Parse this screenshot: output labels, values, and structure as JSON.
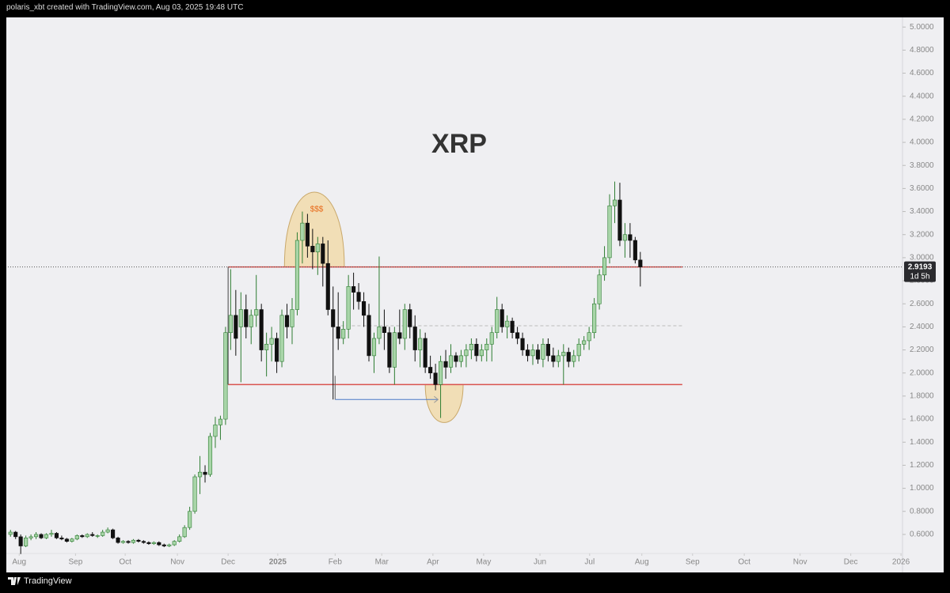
{
  "header": "polaris_xbt created with TradingView.com, Aug 03, 2025 19:48 UTC",
  "brand": "TradingView",
  "chart_data": {
    "type": "candlestick",
    "title": "XRP",
    "xlim": [
      -0.5,
      174.2
    ],
    "ylim": [
      0.435,
      5.07
    ],
    "xticks": [
      {
        "value": 1.7,
        "label": "Aug"
      },
      {
        "value": 12.7,
        "label": "Sep"
      },
      {
        "value": 22.4,
        "label": "Oct"
      },
      {
        "value": 32.6,
        "label": "Nov"
      },
      {
        "value": 42.5,
        "label": "Dec"
      },
      {
        "value": 52.2,
        "label": "2025"
      },
      {
        "value": 63.4,
        "label": "Feb"
      },
      {
        "value": 72.5,
        "label": "Mar"
      },
      {
        "value": 82.5,
        "label": "Apr"
      },
      {
        "value": 92.4,
        "label": "May"
      },
      {
        "value": 103.4,
        "label": "Jun"
      },
      {
        "value": 113.1,
        "label": "Jul"
      },
      {
        "value": 123.3,
        "label": "Aug"
      },
      {
        "value": 133.2,
        "label": "Sep"
      },
      {
        "value": 143.3,
        "label": "Oct"
      },
      {
        "value": 154.2,
        "label": "Nov"
      },
      {
        "value": 164.1,
        "label": "Dec"
      },
      {
        "value": 173.9,
        "label": "2026"
      }
    ],
    "yticks": [
      {
        "value": 0.6,
        "label": "0.6000"
      },
      {
        "value": 0.8,
        "label": "0.8000"
      },
      {
        "value": 1.0,
        "label": "1.0000"
      },
      {
        "value": 1.2,
        "label": "1.2000"
      },
      {
        "value": 1.4,
        "label": "1.4000"
      },
      {
        "value": 1.6,
        "label": "1.6000"
      },
      {
        "value": 1.8,
        "label": "1.8000"
      },
      {
        "value": 2.0,
        "label": "2.0000"
      },
      {
        "value": 2.2,
        "label": "2.2000"
      },
      {
        "value": 2.4,
        "label": "2.4000"
      },
      {
        "value": 2.6,
        "label": "2.6000"
      },
      {
        "value": 2.8,
        "label": "2.8000"
      },
      {
        "value": 3.0,
        "label": "3.0000"
      },
      {
        "value": 3.2,
        "label": "3.2000"
      },
      {
        "value": 3.4,
        "label": "3.4000"
      },
      {
        "value": 3.6,
        "label": "3.6000"
      },
      {
        "value": 3.8,
        "label": "3.8000"
      },
      {
        "value": 4.0,
        "label": "4.0000"
      },
      {
        "value": 4.2,
        "label": "4.2000"
      },
      {
        "value": 4.4,
        "label": "4.4000"
      },
      {
        "value": 4.6,
        "label": "4.6000"
      },
      {
        "value": 4.8,
        "label": "4.8000"
      },
      {
        "value": 5.0,
        "label": "5.0000"
      }
    ],
    "up_color": "#a8d5a8",
    "up_border": "#2e7d32",
    "down_color": "#111111",
    "ohlc": [
      [
        0.6,
        0.64,
        0.58,
        0.62
      ],
      [
        0.62,
        0.63,
        0.56,
        0.58
      ],
      [
        0.58,
        0.6,
        0.43,
        0.5
      ],
      [
        0.5,
        0.59,
        0.49,
        0.57
      ],
      [
        0.57,
        0.6,
        0.55,
        0.58
      ],
      [
        0.58,
        0.62,
        0.56,
        0.6
      ],
      [
        0.6,
        0.61,
        0.56,
        0.57
      ],
      [
        0.57,
        0.61,
        0.56,
        0.6
      ],
      [
        0.6,
        0.64,
        0.58,
        0.61
      ],
      [
        0.61,
        0.62,
        0.56,
        0.57
      ],
      [
        0.57,
        0.59,
        0.55,
        0.56
      ],
      [
        0.56,
        0.57,
        0.53,
        0.54
      ],
      [
        0.54,
        0.57,
        0.53,
        0.56
      ],
      [
        0.56,
        0.6,
        0.55,
        0.59
      ],
      [
        0.59,
        0.6,
        0.57,
        0.58
      ],
      [
        0.58,
        0.61,
        0.57,
        0.6
      ],
      [
        0.6,
        0.62,
        0.58,
        0.59
      ],
      [
        0.59,
        0.6,
        0.57,
        0.59
      ],
      [
        0.59,
        0.64,
        0.58,
        0.62
      ],
      [
        0.62,
        0.66,
        0.61,
        0.64
      ],
      [
        0.64,
        0.65,
        0.56,
        0.57
      ],
      [
        0.57,
        0.58,
        0.52,
        0.53
      ],
      [
        0.53,
        0.55,
        0.52,
        0.54
      ],
      [
        0.54,
        0.55,
        0.52,
        0.53
      ],
      [
        0.53,
        0.56,
        0.52,
        0.55
      ],
      [
        0.55,
        0.56,
        0.53,
        0.54
      ],
      [
        0.54,
        0.55,
        0.52,
        0.53
      ],
      [
        0.53,
        0.54,
        0.51,
        0.52
      ],
      [
        0.52,
        0.54,
        0.51,
        0.53
      ],
      [
        0.53,
        0.54,
        0.5,
        0.51
      ],
      [
        0.51,
        0.52,
        0.49,
        0.5
      ],
      [
        0.5,
        0.52,
        0.49,
        0.51
      ],
      [
        0.51,
        0.55,
        0.5,
        0.54
      ],
      [
        0.54,
        0.6,
        0.53,
        0.58
      ],
      [
        0.58,
        0.68,
        0.57,
        0.66
      ],
      [
        0.66,
        0.84,
        0.64,
        0.8
      ],
      [
        0.8,
        1.12,
        0.78,
        1.1
      ],
      [
        1.1,
        1.28,
        0.95,
        1.14
      ],
      [
        1.14,
        1.2,
        1.05,
        1.12
      ],
      [
        1.12,
        1.48,
        1.1,
        1.45
      ],
      [
        1.45,
        1.62,
        1.35,
        1.55
      ],
      [
        1.55,
        1.63,
        1.42,
        1.6
      ],
      [
        1.6,
        2.4,
        1.55,
        2.35
      ],
      [
        2.35,
        2.9,
        2.2,
        2.5
      ],
      [
        2.5,
        2.72,
        2.15,
        2.3
      ],
      [
        2.4,
        2.7,
        1.92,
        2.55
      ],
      [
        2.55,
        2.68,
        2.3,
        2.4
      ],
      [
        2.4,
        2.55,
        2.25,
        2.5
      ],
      [
        2.5,
        2.85,
        2.4,
        2.55
      ],
      [
        2.55,
        2.6,
        2.1,
        2.2
      ],
      [
        2.2,
        2.35,
        1.97,
        2.25
      ],
      [
        2.25,
        2.4,
        2.1,
        2.3
      ],
      [
        2.3,
        2.35,
        2.0,
        2.1
      ],
      [
        2.1,
        2.55,
        2.05,
        2.5
      ],
      [
        2.5,
        2.6,
        2.3,
        2.4
      ],
      [
        2.4,
        2.65,
        2.25,
        2.55
      ],
      [
        2.55,
        3.22,
        2.5,
        3.15
      ],
      [
        3.15,
        3.4,
        2.95,
        3.3
      ],
      [
        3.3,
        3.38,
        3.0,
        3.1
      ],
      [
        3.1,
        3.25,
        2.9,
        3.05
      ],
      [
        3.05,
        3.18,
        2.85,
        3.12
      ],
      [
        3.12,
        3.18,
        2.75,
        2.95
      ],
      [
        2.95,
        3.15,
        2.5,
        2.55
      ],
      [
        2.55,
        2.75,
        1.77,
        2.4
      ],
      [
        2.4,
        2.7,
        2.2,
        2.3
      ],
      [
        2.3,
        2.45,
        2.25,
        2.38
      ],
      [
        2.38,
        2.85,
        2.3,
        2.75
      ],
      [
        2.75,
        2.87,
        2.55,
        2.7
      ],
      [
        2.7,
        2.78,
        2.55,
        2.62
      ],
      [
        2.62,
        2.7,
        2.4,
        2.5
      ],
      [
        2.5,
        2.6,
        2.1,
        2.15
      ],
      [
        2.15,
        2.35,
        2.0,
        2.3
      ],
      [
        2.3,
        3.01,
        2.25,
        2.4
      ],
      [
        2.4,
        2.55,
        2.2,
        2.35
      ],
      [
        2.35,
        2.4,
        2.0,
        2.05
      ],
      [
        2.05,
        2.4,
        1.9,
        2.35
      ],
      [
        2.35,
        2.55,
        2.25,
        2.3
      ],
      [
        2.3,
        2.6,
        2.2,
        2.55
      ],
      [
        2.55,
        2.6,
        2.3,
        2.4
      ],
      [
        2.4,
        2.5,
        2.1,
        2.2
      ],
      [
        2.2,
        2.38,
        2.05,
        2.3
      ],
      [
        2.3,
        2.35,
        2.0,
        2.05
      ],
      [
        2.05,
        2.15,
        1.95,
        2.0
      ],
      [
        2.0,
        2.08,
        1.85,
        1.9
      ],
      [
        1.9,
        2.15,
        1.61,
        2.1
      ],
      [
        2.1,
        2.2,
        1.95,
        2.05
      ],
      [
        2.05,
        2.25,
        2.0,
        2.15
      ],
      [
        2.15,
        2.18,
        2.05,
        2.1
      ],
      [
        2.1,
        2.2,
        2.05,
        2.15
      ],
      [
        2.15,
        2.25,
        2.05,
        2.2
      ],
      [
        2.2,
        2.3,
        2.12,
        2.25
      ],
      [
        2.25,
        2.3,
        2.1,
        2.15
      ],
      [
        2.15,
        2.25,
        2.1,
        2.2
      ],
      [
        2.2,
        2.3,
        2.1,
        2.25
      ],
      [
        2.25,
        2.4,
        2.1,
        2.35
      ],
      [
        2.35,
        2.66,
        2.3,
        2.55
      ],
      [
        2.55,
        2.6,
        2.35,
        2.4
      ],
      [
        2.4,
        2.5,
        2.3,
        2.45
      ],
      [
        2.45,
        2.48,
        2.3,
        2.35
      ],
      [
        2.35,
        2.4,
        2.25,
        2.3
      ],
      [
        2.3,
        2.35,
        2.15,
        2.2
      ],
      [
        2.2,
        2.25,
        2.1,
        2.15
      ],
      [
        2.15,
        2.25,
        2.07,
        2.2
      ],
      [
        2.2,
        2.25,
        2.08,
        2.12
      ],
      [
        2.12,
        2.3,
        2.05,
        2.25
      ],
      [
        2.25,
        2.3,
        2.1,
        2.15
      ],
      [
        2.15,
        2.22,
        2.05,
        2.1
      ],
      [
        2.1,
        2.2,
        2.05,
        2.15
      ],
      [
        2.15,
        2.25,
        1.9,
        2.18
      ],
      [
        2.18,
        2.22,
        2.05,
        2.1
      ],
      [
        2.1,
        2.2,
        2.05,
        2.15
      ],
      [
        2.15,
        2.3,
        2.1,
        2.25
      ],
      [
        2.25,
        2.32,
        2.2,
        2.28
      ],
      [
        2.28,
        2.4,
        2.2,
        2.35
      ],
      [
        2.35,
        2.65,
        2.3,
        2.6
      ],
      [
        2.6,
        2.9,
        2.55,
        2.85
      ],
      [
        2.85,
        3.1,
        2.8,
        3.0
      ],
      [
        3.0,
        3.55,
        2.95,
        3.45
      ],
      [
        3.45,
        3.66,
        3.3,
        3.5
      ],
      [
        3.5,
        3.65,
        3.1,
        3.15
      ],
      [
        3.15,
        3.3,
        3.0,
        3.2
      ],
      [
        3.2,
        3.3,
        3.0,
        3.15
      ],
      [
        3.15,
        3.18,
        2.95,
        2.98
      ],
      [
        2.98,
        3.05,
        2.75,
        2.92
      ]
    ],
    "range_box": {
      "start": 42.5,
      "end": 131.2,
      "top": 2.92,
      "bottom": 1.9,
      "mid": 2.41,
      "mid_start": 64.5,
      "color": "#d9534f"
    },
    "highlights": [
      {
        "x": [
          53.5,
          65.2
        ],
        "base": 2.92,
        "peak": 3.57
      },
      {
        "x": [
          81.0,
          88.4
        ],
        "base": 1.9,
        "peak": 1.57
      }
    ],
    "highlight_text": {
      "x": 59.8,
      "y": 3.42,
      "text": "$$$"
    },
    "arrow": {
      "x": [
        63.4,
        83.5
      ],
      "y": 1.77,
      "color": "#4a78c8"
    },
    "last_price": 2.9193,
    "countdown": "1d 5h"
  }
}
